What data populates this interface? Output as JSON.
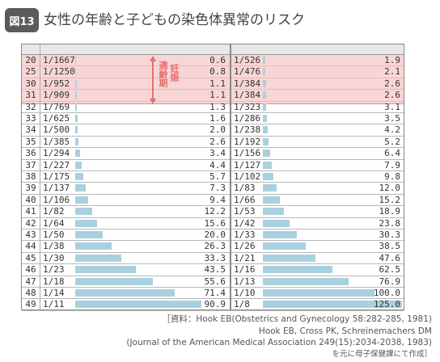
{
  "figure": {
    "badge": "図13",
    "title": "女性の年齢と子どもの染色体異常のリスク"
  },
  "annotation": {
    "pregnancy_period_a": "適齢期",
    "pregnancy_period_b": "妊娠"
  },
  "colors": {
    "bar": "#a9d0df",
    "highlight": "#f8d6d6",
    "annotation": "#e56f6f"
  },
  "chart_data": {
    "type": "table",
    "columns": [
      "age",
      "ratio_1",
      "value_1",
      "ratio_2",
      "value_2"
    ],
    "rows": [
      {
        "age": "20",
        "ratio_1": "1/1667",
        "value_1": "0.6",
        "ratio_2": "1/526",
        "value_2": "1.9"
      },
      {
        "age": "25",
        "ratio_1": "1/1250",
        "value_1": "0.8",
        "ratio_2": "1/476",
        "value_2": "2.1"
      },
      {
        "age": "30",
        "ratio_1": "1/952",
        "value_1": "1.1",
        "ratio_2": "1/384",
        "value_2": "2.6"
      },
      {
        "age": "31",
        "ratio_1": "1/909",
        "value_1": "1.1",
        "ratio_2": "1/384",
        "value_2": "2.6"
      },
      {
        "age": "32",
        "ratio_1": "1/769",
        "value_1": "1.3",
        "ratio_2": "1/323",
        "value_2": "3.1"
      },
      {
        "age": "33",
        "ratio_1": "1/625",
        "value_1": "1.6",
        "ratio_2": "1/286",
        "value_2": "3.5"
      },
      {
        "age": "34",
        "ratio_1": "1/500",
        "value_1": "2.0",
        "ratio_2": "1/238",
        "value_2": "4.2"
      },
      {
        "age": "35",
        "ratio_1": "1/385",
        "value_1": "2.6",
        "ratio_2": "1/192",
        "value_2": "5.2"
      },
      {
        "age": "36",
        "ratio_1": "1/294",
        "value_1": "3.4",
        "ratio_2": "1/156",
        "value_2": "6.4"
      },
      {
        "age": "37",
        "ratio_1": "1/227",
        "value_1": "4.4",
        "ratio_2": "1/127",
        "value_2": "7.9"
      },
      {
        "age": "38",
        "ratio_1": "1/175",
        "value_1": "5.7",
        "ratio_2": "1/102",
        "value_2": "9.8"
      },
      {
        "age": "39",
        "ratio_1": "1/137",
        "value_1": "7.3",
        "ratio_2": "1/83",
        "value_2": "12.0"
      },
      {
        "age": "40",
        "ratio_1": "1/106",
        "value_1": "9.4",
        "ratio_2": "1/66",
        "value_2": "15.2"
      },
      {
        "age": "41",
        "ratio_1": "1/82",
        "value_1": "12.2",
        "ratio_2": "1/53",
        "value_2": "18.9"
      },
      {
        "age": "42",
        "ratio_1": "1/64",
        "value_1": "15.6",
        "ratio_2": "1/42",
        "value_2": "23.8"
      },
      {
        "age": "43",
        "ratio_1": "1/50",
        "value_1": "20.0",
        "ratio_2": "1/33",
        "value_2": "30.3"
      },
      {
        "age": "44",
        "ratio_1": "1/38",
        "value_1": "26.3",
        "ratio_2": "1/26",
        "value_2": "38.5"
      },
      {
        "age": "45",
        "ratio_1": "1/30",
        "value_1": "33.3",
        "ratio_2": "1/21",
        "value_2": "47.6"
      },
      {
        "age": "46",
        "ratio_1": "1/23",
        "value_1": "43.5",
        "ratio_2": "1/16",
        "value_2": "62.5"
      },
      {
        "age": "47",
        "ratio_1": "1/18",
        "value_1": "55.6",
        "ratio_2": "1/13",
        "value_2": "76.9"
      },
      {
        "age": "48",
        "ratio_1": "1/14",
        "value_1": "71.4",
        "ratio_2": "1/10",
        "value_2": "100.0"
      },
      {
        "age": "49",
        "ratio_1": "1/11",
        "value_1": "90.9",
        "ratio_2": "1/8",
        "value_2": "125.0"
      }
    ],
    "highlighted_ages": [
      "20",
      "25",
      "30",
      "31"
    ],
    "bar_max": {
      "value_1": 100,
      "value_2": 125
    }
  },
  "source": {
    "line1": "［資料：Hook EB(Obstetrics and Gynecology 58:282-285, 1981)",
    "line2": "Hook EB, Cross PK, Schreinemachers DM",
    "line3": "(Journal of the American Medical Association 249(15):2034-2038, 1983)",
    "line4": "を元に母子保健課にて作成］"
  }
}
